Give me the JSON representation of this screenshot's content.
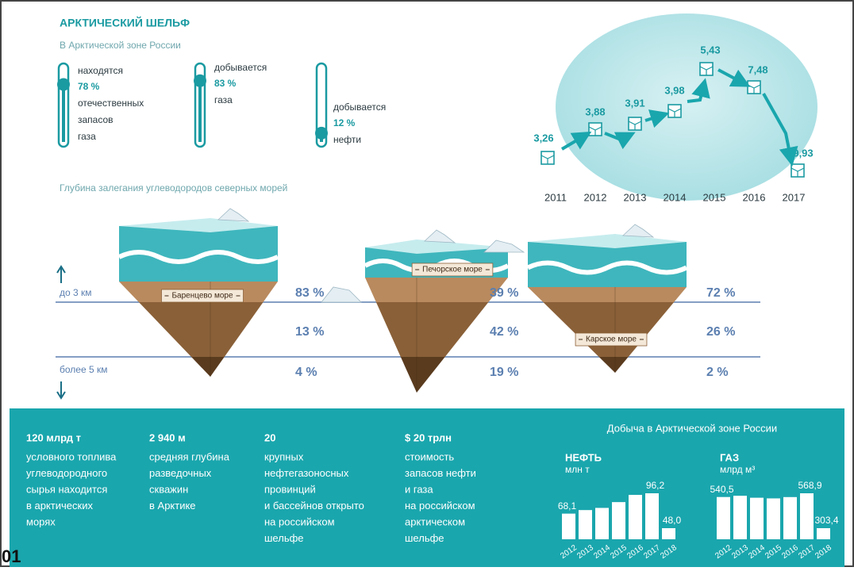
{
  "header": {
    "title": "АРКТИЧЕСКИЙ ШЕЛЬФ",
    "subtitle": "В Арктической зоне России"
  },
  "gauges": [
    {
      "before": [
        "находятся"
      ],
      "value": 78,
      "label": "78 %",
      "after": [
        "отечественных",
        "запасов",
        "газа"
      ]
    },
    {
      "before": [
        "добывается"
      ],
      "value": 83,
      "label": "83 %",
      "after": [
        "газа"
      ]
    },
    {
      "before": [
        "добывается"
      ],
      "value": 12,
      "label": "12 %",
      "after": [
        "нефти"
      ]
    }
  ],
  "trend": {
    "years": [
      "2011",
      "2012",
      "2013",
      "2014",
      "2015",
      "2016",
      "2017"
    ],
    "labels": [
      "3,26",
      "3,88",
      "3,91",
      "3,98",
      "5,43",
      "7,48",
      "9,93"
    ]
  },
  "depth": {
    "title": "Глубина залегания углеводородов северных морей",
    "top_label": "до 3 км",
    "bottom_label": "более 5 км",
    "seas": [
      {
        "name": "Баренцево море",
        "shares": [
          "83 %",
          "13 %",
          "4 %"
        ]
      },
      {
        "name": "Печорское море",
        "shares": [
          "39 %",
          "42 %",
          "19 %"
        ]
      },
      {
        "name": "Карское море",
        "shares": [
          "72 %",
          "26 %",
          "2 %"
        ]
      }
    ]
  },
  "facts": [
    {
      "headline": "120 млрд т",
      "lines": [
        "условного топлива",
        "углеводородного",
        "сырья находится",
        "в арктических",
        "морях"
      ]
    },
    {
      "headline": "2 940 м",
      "lines": [
        "средняя глубина",
        "разведочных",
        "скважин",
        "в Арктике"
      ]
    },
    {
      "headline": "20",
      "lines": [
        "крупных",
        "нефтегазоносных",
        "провинций",
        "и бассейнов открыто",
        "на российском",
        "шельфе"
      ]
    },
    {
      "headline": "$ 20 трлн",
      "lines": [
        "стоимость",
        "запасов нефти",
        "и газа",
        "на российском",
        "арктическом",
        "шельфе"
      ]
    }
  ],
  "production": {
    "title": "Добыча в Арктической зоне России",
    "charts": [
      {
        "name": "НЕФТЬ",
        "unit": "млн т",
        "years": [
          "2012",
          "2013",
          "2014",
          "2015",
          "2016",
          "2017",
          "2018"
        ],
        "values": [
          68.1,
          73,
          76,
          84,
          94,
          96.2,
          48.0
        ],
        "value_labels": [
          "68,1",
          null,
          null,
          null,
          null,
          "96,2",
          "48,0"
        ]
      },
      {
        "name": "ГАЗ",
        "unit": "млрд м³",
        "years": [
          "2012",
          "2013",
          "2014",
          "2015",
          "2016",
          "2017",
          "2018"
        ],
        "values": [
          540.5,
          550,
          535,
          530,
          540,
          568.9,
          303.4
        ],
        "value_labels": [
          "540,5",
          null,
          null,
          null,
          null,
          "568,9",
          "303,4"
        ]
      }
    ]
  },
  "page_number": "01"
}
